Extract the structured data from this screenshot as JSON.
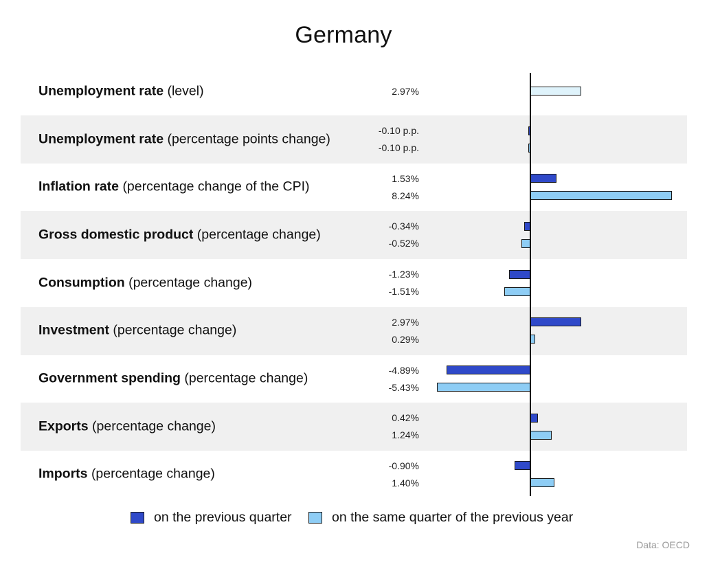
{
  "chart_data": {
    "type": "bar",
    "orientation": "horizontal",
    "title": "Germany",
    "source": "Data: OECD",
    "legend_position": "bottom",
    "colors": {
      "previous_quarter": "#2f49c9",
      "same_quarter_previous_year": "#8ecdf5",
      "level": "#dff3fb",
      "row_stripe": "#f0f0f0"
    },
    "series": [
      {
        "name": "on the previous quarter",
        "key": "q"
      },
      {
        "name": "on the same quarter of the previous year",
        "key": "y"
      }
    ],
    "rows": [
      {
        "bold": "Unemployment rate",
        "rest": "(level)",
        "striped": false,
        "bars": [
          {
            "series": "lvl",
            "value": 2.97,
            "label": "2.97%"
          }
        ]
      },
      {
        "bold": "Unemployment rate",
        "rest": "(percentage points change)",
        "striped": true,
        "bars": [
          {
            "series": "q",
            "value": -0.1,
            "label": "-0.10 p.p."
          },
          {
            "series": "y",
            "value": -0.1,
            "label": "-0.10 p.p."
          }
        ]
      },
      {
        "bold": "Inflation rate",
        "rest": "(percentage change of the CPI)",
        "striped": false,
        "bars": [
          {
            "series": "q",
            "value": 1.53,
            "label": "1.53%"
          },
          {
            "series": "y",
            "value": 8.24,
            "label": "8.24%"
          }
        ]
      },
      {
        "bold": "Gross domestic product",
        "rest": "(percentage change)",
        "striped": true,
        "bars": [
          {
            "series": "q",
            "value": -0.34,
            "label": "-0.34%"
          },
          {
            "series": "y",
            "value": -0.52,
            "label": "-0.52%"
          }
        ]
      },
      {
        "bold": "Consumption",
        "rest": "(percentage change)",
        "striped": false,
        "bars": [
          {
            "series": "q",
            "value": -1.23,
            "label": "-1.23%"
          },
          {
            "series": "y",
            "value": -1.51,
            "label": "-1.51%"
          }
        ]
      },
      {
        "bold": "Investment",
        "rest": "(percentage change)",
        "striped": true,
        "bars": [
          {
            "series": "q",
            "value": 2.97,
            "label": "2.97%"
          },
          {
            "series": "y",
            "value": 0.29,
            "label": "0.29%"
          }
        ]
      },
      {
        "bold": "Government spending",
        "rest": "(percentage change)",
        "striped": false,
        "bars": [
          {
            "series": "q",
            "value": -4.89,
            "label": "-4.89%"
          },
          {
            "series": "y",
            "value": -5.43,
            "label": "-5.43%"
          }
        ]
      },
      {
        "bold": "Exports",
        "rest": "(percentage change)",
        "striped": true,
        "bars": [
          {
            "series": "q",
            "value": 0.42,
            "label": "0.42%"
          },
          {
            "series": "y",
            "value": 1.24,
            "label": "1.24%"
          }
        ]
      },
      {
        "bold": "Imports",
        "rest": "(percentage change)",
        "striped": false,
        "bars": [
          {
            "series": "q",
            "value": -0.9,
            "label": "-0.90%"
          },
          {
            "series": "y",
            "value": 1.4,
            "label": "1.40%"
          }
        ]
      }
    ]
  }
}
